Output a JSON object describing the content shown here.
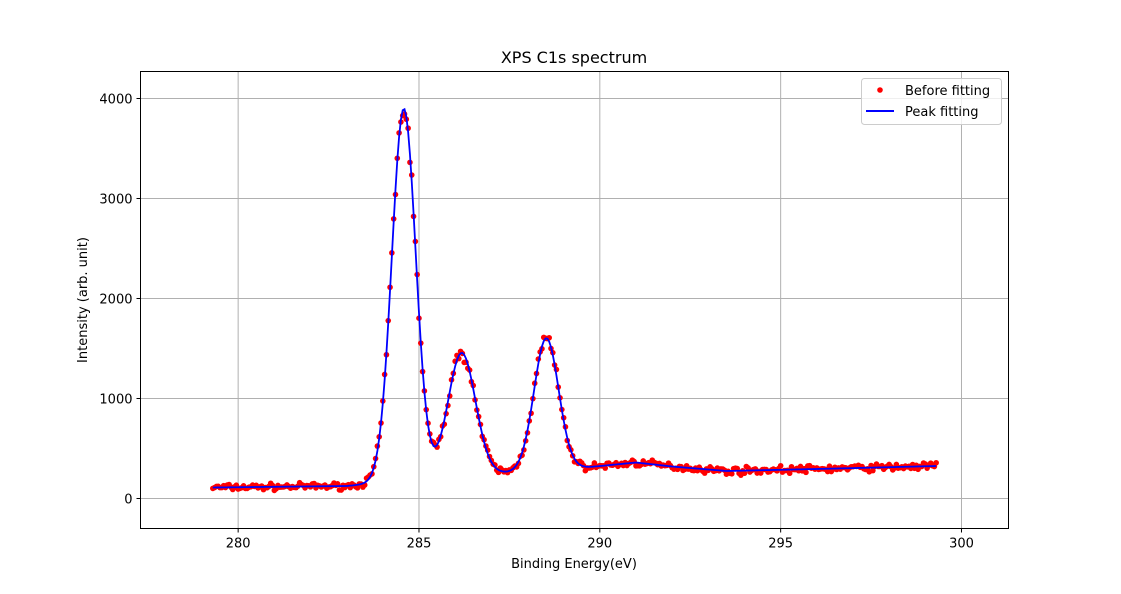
{
  "chart_data": {
    "type": "line",
    "title": "XPS C1s spectrum",
    "xlabel": "Binding Energy(eV)",
    "ylabel": "Intensity (arb. unit)",
    "xlim": [
      277.3,
      301.3
    ],
    "ylim": [
      -300,
      4270
    ],
    "xticks": [
      280,
      285,
      290,
      295,
      300
    ],
    "yticks": [
      0,
      1000,
      2000,
      3000,
      4000
    ],
    "grid": true,
    "legend_position": "top-right",
    "x_start": 279.3,
    "x_end": 299.3,
    "x_step": 0.05,
    "fit_model": {
      "baseline_segments": [
        [
          279.3,
          110
        ],
        [
          283.0,
          125
        ],
        [
          285.5,
          210
        ],
        [
          289.6,
          310
        ],
        [
          291.0,
          360
        ],
        [
          292.0,
          320
        ],
        [
          293.5,
          275
        ],
        [
          296.0,
          295
        ],
        [
          299.3,
          325
        ]
      ],
      "peaks": [
        {
          "center": 284.58,
          "height": 3720,
          "sigma": 0.33
        },
        {
          "center": 286.18,
          "height": 1230,
          "sigma": 0.38
        },
        {
          "center": 288.52,
          "height": 1320,
          "sigma": 0.34
        }
      ]
    },
    "series": [
      {
        "name": "Before fitting",
        "style": "points",
        "color": "#ff0000"
      },
      {
        "name": "Peak fitting",
        "style": "line",
        "color": "#0000ff"
      }
    ]
  }
}
